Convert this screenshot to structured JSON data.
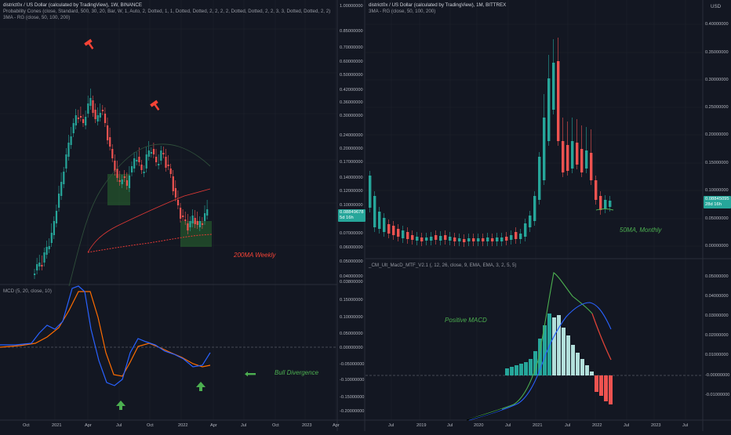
{
  "left_chart": {
    "title": "district0x / US Dollar (calculated by TradingView), 1W, BINANCE",
    "indicator_probability_cones": "Probability Cones (close, Standard, 500, 30, 20, Bar, W, 1, Auto, 2, Dotted, 1, 1, Dotted, Dotted, 2, 2, 2, 2, Dotted, Dotted, 2, 2, 3, 3, Dotted, Dotted, 2, 2)",
    "indicator_3ma": "3MA - RG (close, 50, 100, 200)",
    "price_axis": [
      "1.00000000",
      "0.85000000",
      "0.70000000",
      "0.60000000",
      "0.50000000",
      "0.42000000",
      "0.36000000",
      "0.30000000",
      "0.24000000",
      "0.20000000",
      "0.17000000",
      "0.14000000",
      "0.12000000",
      "0.10000000",
      "0.07000000",
      "0.06000000",
      "0.05000000",
      "0.04000000",
      "0.03800000"
    ],
    "current_price": "0.08849678",
    "current_price_countdown": "5d 16h",
    "annotation_200ma": "200MA Weekly",
    "macd_title": "MCD (5, 20, close, 10)",
    "macd_axis": [
      "0.15000000",
      "0.10000000",
      "0.05000000",
      "0.00000000",
      "-0.05000000",
      "-0.10000000",
      "-0.15000000",
      "-0.20000000"
    ],
    "annotation_bull_divergence": "Bull Divergence",
    "time_axis": [
      "Oct",
      "2021",
      "Apr",
      "Jul",
      "Oct",
      "2022",
      "Apr",
      "Jul",
      "Oct",
      "2023",
      "Apr"
    ]
  },
  "right_chart": {
    "title": "district0x / US Dollar (calculated by TradingView), 1M, BITTREX",
    "indicator_3ma": "3MA - RG (close, 50, 100, 200)",
    "currency": "USD",
    "price_axis": [
      "0.40000000",
      "0.35000000",
      "0.30000000",
      "0.25000000",
      "0.20000000",
      "0.15000000",
      "0.10000000",
      "0.05000000",
      "0.00000000"
    ],
    "current_price": "0.08845095",
    "current_price_countdown": "28d 16h",
    "annotation_50ma": "50MA, Monthly",
    "macd_title": "_CM_Ult_MacD_MTF_V2.1 (, 12, 26, close, 9, EMA, EMA, 3, 2, 5, 5)",
    "macd_axis": [
      "0.05000000",
      "0.04000000",
      "0.03000000",
      "0.02000000",
      "0.01000000",
      "-0.00000000",
      "-0.01000000"
    ],
    "annotation_positive_macd": "Positive MACD",
    "time_axis": [
      "Jul",
      "2019",
      "Jul",
      "2020",
      "Jul",
      "2021",
      "Jul",
      "2022",
      "Jul",
      "2023",
      "Jul"
    ]
  },
  "colors": {
    "background": "#131722",
    "bull": "#26a69a",
    "bear": "#ef5350",
    "ma_red": "#e53935",
    "macd_blue": "#2962ff",
    "macd_orange": "#ff6d00",
    "annot_green": "#4caf50",
    "annot_red": "#f44336",
    "grid": "#1e222d"
  },
  "icons": {
    "sell_marker": "hammer-icon",
    "buy_arrow": "arrow-up-icon",
    "pointer": "arrow-left-icon"
  }
}
